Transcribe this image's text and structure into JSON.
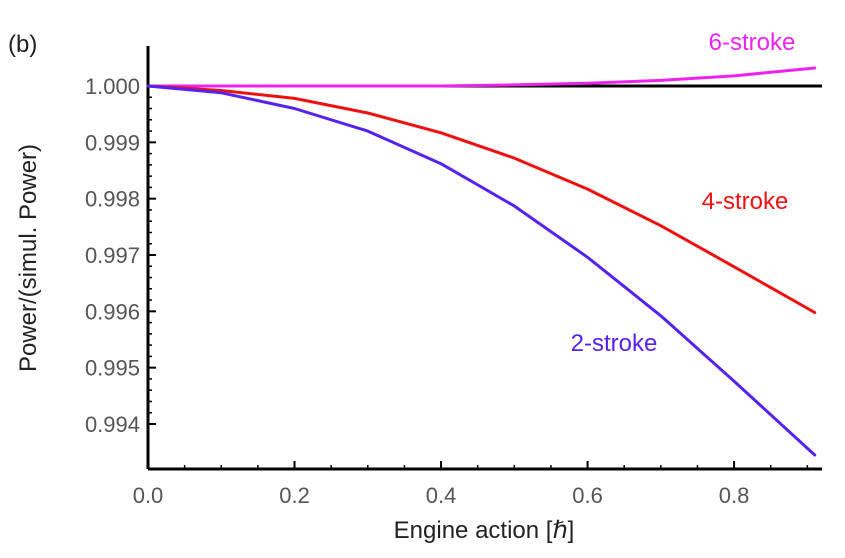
{
  "chart_data": {
    "type": "line",
    "panel_label": "(b)",
    "title": "",
    "xlabel": "Engine action [ℏ]",
    "ylabel": "Power/(simul. Power)",
    "xlim": [
      0.0,
      0.92
    ],
    "ylim": [
      0.9932,
      1.0007
    ],
    "x_ticks": [
      0.0,
      0.2,
      0.4,
      0.6,
      0.8
    ],
    "x_tick_labels": [
      "0.0",
      "0.2",
      "0.4",
      "0.6",
      "0.8"
    ],
    "y_ticks": [
      1.0,
      0.999,
      0.998,
      0.997,
      0.996,
      0.995,
      0.994
    ],
    "y_tick_labels": [
      "1.000",
      "0.999",
      "0.998",
      "0.997",
      "0.996",
      "0.995",
      "0.994"
    ],
    "grid": false,
    "reference_line": {
      "y": 1.0,
      "color": "#000000"
    },
    "series": [
      {
        "name": "6-stroke",
        "color": "#ee22ee",
        "x": [
          0.0,
          0.1,
          0.2,
          0.3,
          0.4,
          0.5,
          0.6,
          0.7,
          0.8,
          0.91
        ],
        "y": [
          1.0,
          1.0,
          1.0,
          1.0,
          1.0,
          1.00002,
          1.00005,
          1.0001,
          1.00018,
          1.00032
        ]
      },
      {
        "name": "4-stroke",
        "color": "#ee1111",
        "x": [
          0.0,
          0.1,
          0.2,
          0.3,
          0.4,
          0.5,
          0.6,
          0.7,
          0.8,
          0.91
        ],
        "y": [
          1.0,
          0.99992,
          0.99978,
          0.99952,
          0.99917,
          0.99872,
          0.99817,
          0.99752,
          0.99679,
          0.99598
        ]
      },
      {
        "name": "2-stroke",
        "color": "#5522ee",
        "x": [
          0.0,
          0.1,
          0.2,
          0.3,
          0.4,
          0.5,
          0.6,
          0.7,
          0.8,
          0.91
        ],
        "y": [
          1.0,
          0.99988,
          0.9996,
          0.9992,
          0.99862,
          0.99787,
          0.99696,
          0.99592,
          0.99476,
          0.99345
        ]
      }
    ]
  }
}
